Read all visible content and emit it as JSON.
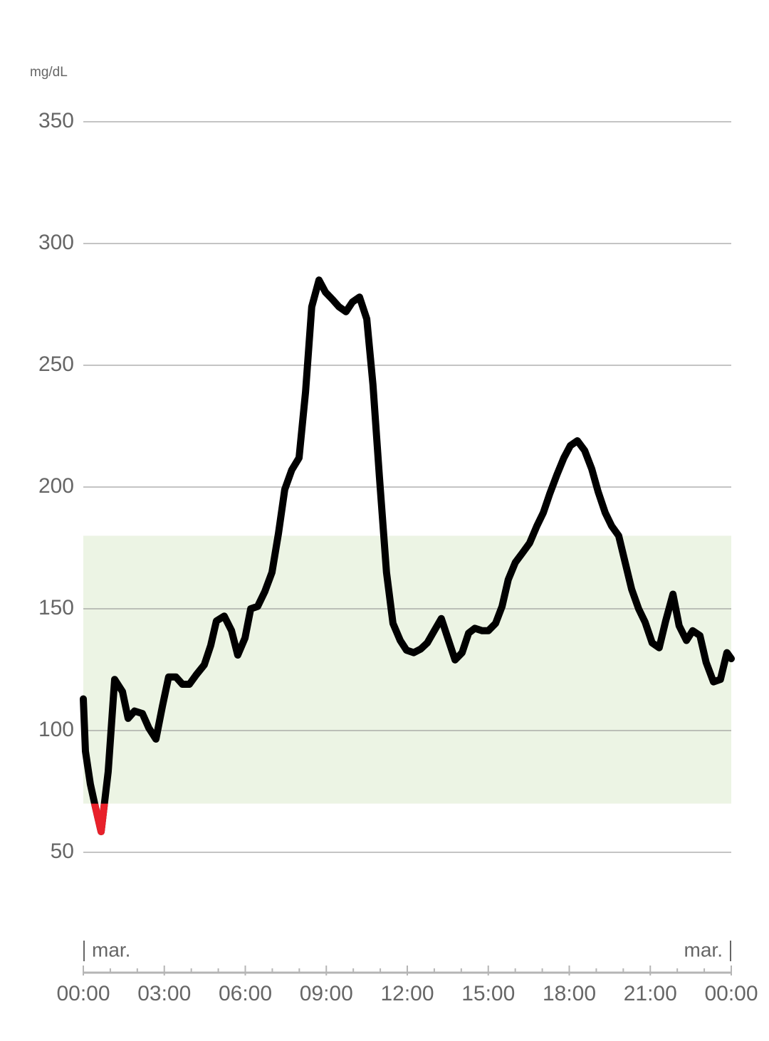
{
  "chart_data": {
    "type": "line",
    "y_unit": "mg/dL",
    "day_labels": [
      "mar.",
      "mar."
    ],
    "x": [
      0,
      0.08,
      0.26,
      0.42,
      0.66,
      0.92,
      1.16,
      1.45,
      1.66,
      1.9,
      2.19,
      2.43,
      2.69,
      2.93,
      3.16,
      3.43,
      3.67,
      3.93,
      4.19,
      4.48,
      4.72,
      4.93,
      5.22,
      5.49,
      5.72,
      5.99,
      6.2,
      6.46,
      6.72,
      6.99,
      7.23,
      7.46,
      7.72,
      7.99,
      8.23,
      8.46,
      8.73,
      8.97,
      9.23,
      9.47,
      9.73,
      9.97,
      10.23,
      10.5,
      10.73,
      10.97,
      11.23,
      11.47,
      11.74,
      11.97,
      12.24,
      12.5,
      12.74,
      13.0,
      13.26,
      13.53,
      13.77,
      14.03,
      14.27,
      14.5,
      14.77,
      15.0,
      15.27,
      15.51,
      15.74,
      16.0,
      16.27,
      16.53,
      16.8,
      17.04,
      17.27,
      17.54,
      17.8,
      18.04,
      18.3,
      18.57,
      18.83,
      19.07,
      19.33,
      19.57,
      19.83,
      20.07,
      20.31,
      20.57,
      20.81,
      21.07,
      21.33,
      21.57,
      21.84,
      22.07,
      22.34,
      22.57,
      22.84,
      23.07,
      23.34,
      23.6,
      23.84,
      24
    ],
    "values": [
      113,
      91.5,
      78,
      70,
      58.5,
      83,
      121,
      116,
      105,
      108,
      107,
      101,
      96.5,
      110,
      122,
      122,
      119,
      119,
      123,
      127,
      135,
      145,
      147,
      141,
      131,
      138,
      150,
      151,
      157,
      165,
      181,
      199,
      207,
      212,
      239,
      274,
      285,
      280,
      277,
      274,
      272,
      276,
      278,
      269,
      242,
      204,
      165,
      144,
      137,
      133,
      132,
      133.5,
      136,
      141,
      146,
      137,
      129,
      132,
      140,
      142,
      141,
      141,
      144,
      151,
      162,
      169,
      173,
      177,
      184,
      189.5,
      197,
      205,
      212,
      217,
      219,
      215,
      207.5,
      198,
      189.5,
      184,
      180,
      169,
      158,
      150,
      144.5,
      136,
      134,
      145,
      156,
      143,
      137,
      141,
      139,
      128,
      120,
      121,
      132,
      129.5
    ],
    "color": "#000000",
    "low_color": "#e8202a",
    "range_color": "#ecf4e4",
    "target_range": [
      70,
      180
    ],
    "xlim": [
      0,
      24
    ],
    "ylim": [
      0,
      350
    ],
    "xticks": [
      {
        "value": 0,
        "label": "00:00"
      },
      {
        "value": 3,
        "label": "03:00"
      },
      {
        "value": 6,
        "label": "06:00"
      },
      {
        "value": 9,
        "label": "09:00"
      },
      {
        "value": 12,
        "label": "12:00"
      },
      {
        "value": 15,
        "label": "15:00"
      },
      {
        "value": 18,
        "label": "18:00"
      },
      {
        "value": 21,
        "label": "21:00"
      },
      {
        "value": 24,
        "label": "00:00"
      }
    ],
    "xminorticks": [
      1,
      2,
      4,
      5,
      7,
      8,
      10,
      11,
      13,
      14,
      16,
      17,
      19,
      20,
      22,
      23
    ],
    "yticks": [
      50,
      100,
      150,
      200,
      250,
      300,
      350
    ],
    "grid": true
  }
}
